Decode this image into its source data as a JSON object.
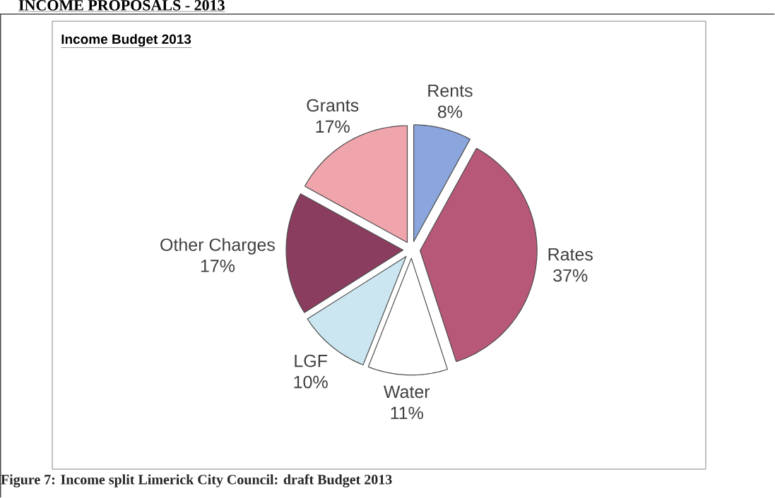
{
  "chart_data": {
    "type": "pie",
    "title": "INCOME PROPOSALS - 2013",
    "subtitle": "Income Budget 2013",
    "categories": [
      "Rents",
      "Rates",
      "Water",
      "LGF",
      "Other Charges",
      "Grants"
    ],
    "values": [
      8,
      37,
      11,
      10,
      17,
      17
    ],
    "colors": [
      "#8aa6dc",
      "#b85878",
      "#ffffff",
      "#cbe6f0",
      "#8a3d5e",
      "#f0a4ac"
    ],
    "value_labels": [
      "8%",
      "37%",
      "11%",
      "10%",
      "17%",
      "17%"
    ],
    "annotations": [
      "Figure 7: Income split Limerick City Council: draft Budget 2013"
    ]
  }
}
